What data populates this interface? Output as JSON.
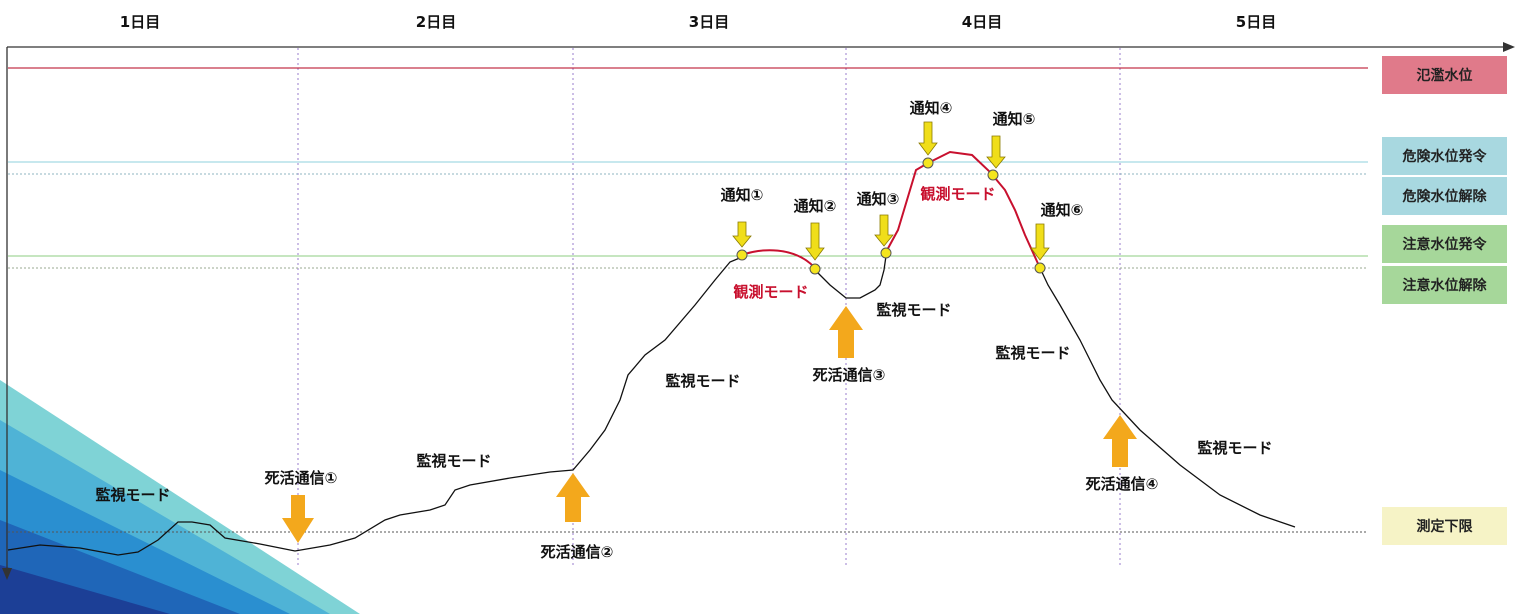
{
  "days": [
    "1日目",
    "2日目",
    "3日目",
    "4日目",
    "5日目"
  ],
  "thresholds": {
    "flood": {
      "label": "氾濫水位",
      "color": "#e07a8a"
    },
    "danger_issue": {
      "label": "危険水位発令",
      "color": "#a8d8e0"
    },
    "danger_release": {
      "label": "危険水位解除",
      "color": "#a8d8e0"
    },
    "caution_issue": {
      "label": "注意水位発令",
      "color": "#a6d79a"
    },
    "caution_release": {
      "label": "注意水位解除",
      "color": "#a6d79a"
    },
    "lower_limit": {
      "label": "測定下限",
      "color": "#f6f3c6"
    }
  },
  "notifications": [
    "通知①",
    "通知②",
    "通知③",
    "通知④",
    "通知⑤",
    "通知⑥"
  ],
  "alive_signals": [
    "死活通信①",
    "死活通信②",
    "死活通信③",
    "死活通信④"
  ],
  "modes": {
    "monitor": "監視モード",
    "observe": "観測モード"
  },
  "colors": {
    "curve": "#111111",
    "observe_curve": "#c8102e",
    "notify_marker": "#f5e51d",
    "notify_arrow": "#f0de1a",
    "alive_arrow": "#f3a81c",
    "flood_line": "#b4001e",
    "danger_line": "#8fd0dc",
    "caution_line": "#8ccc80",
    "day_divider": "#9a7ccc"
  },
  "icons": {
    "notify_arrow": "down-arrow-icon",
    "alive_arrow_down": "down-arrow-icon",
    "alive_arrow_up": "up-arrow-icon"
  }
}
